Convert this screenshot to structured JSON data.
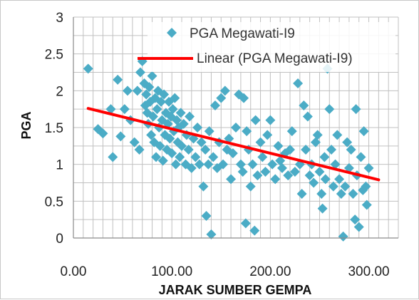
{
  "chart_data": {
    "type": "scatter",
    "title": "",
    "xlabel": "JARAK SUMBER GEMPA",
    "ylabel": "PGA",
    "xlim": [
      0,
      330
    ],
    "ylim": [
      0,
      3
    ],
    "x_ticks": [
      "0.00",
      "100.00",
      "200.00",
      "300.00"
    ],
    "x_tick_values": [
      0,
      100,
      200,
      300
    ],
    "y_ticks": [
      "0",
      "0.5",
      "1",
      "1.5",
      "2",
      "2.5",
      "3"
    ],
    "y_tick_values": [
      0,
      0.5,
      1,
      1.5,
      2,
      2.5,
      3
    ],
    "grid": true,
    "legend_position": "top-right",
    "colors": {
      "points": "#4bacc6",
      "trendline": "#ff0000",
      "grid": "#c0c0c0"
    },
    "series": [
      {
        "name": "PGA Megawati-I9",
        "kind": "scatter",
        "marker": "diamond",
        "points": [
          [
            15,
            2.3
          ],
          [
            25,
            1.48
          ],
          [
            30,
            1.42
          ],
          [
            38,
            1.75
          ],
          [
            40,
            1.1
          ],
          [
            45,
            2.15
          ],
          [
            48,
            1.38
          ],
          [
            52,
            1.75
          ],
          [
            55,
            2.0
          ],
          [
            58,
            1.6
          ],
          [
            62,
            1.3
          ],
          [
            65,
            2.0
          ],
          [
            67,
            1.2
          ],
          [
            68,
            2.25
          ],
          [
            70,
            2.4
          ],
          [
            72,
            2.1
          ],
          [
            73,
            1.8
          ],
          [
            74,
            1.95
          ],
          [
            75,
            1.7
          ],
          [
            76,
            1.55
          ],
          [
            77,
            2.05
          ],
          [
            78,
            1.85
          ],
          [
            79,
            1.4
          ],
          [
            80,
            2.2
          ],
          [
            81,
            1.65
          ],
          [
            82,
            1.3
          ],
          [
            83,
            1.9
          ],
          [
            84,
            1.1
          ],
          [
            85,
            1.75
          ],
          [
            86,
            2.0
          ],
          [
            87,
            1.5
          ],
          [
            88,
            1.25
          ],
          [
            89,
            1.85
          ],
          [
            90,
            1.6
          ],
          [
            91,
            1.05
          ],
          [
            92,
            1.95
          ],
          [
            93,
            1.4
          ],
          [
            94,
            1.7
          ],
          [
            95,
            1.2
          ],
          [
            96,
            1.55
          ],
          [
            97,
            1.85
          ],
          [
            98,
            1.35
          ],
          [
            99,
            1.65
          ],
          [
            100,
            1.15
          ],
          [
            101,
            1.75
          ],
          [
            102,
            1.45
          ],
          [
            103,
            1.9
          ],
          [
            104,
            1.0
          ],
          [
            105,
            1.6
          ],
          [
            106,
            1.3
          ],
          [
            107,
            1.5
          ],
          [
            108,
            1.1
          ],
          [
            109,
            1.7
          ],
          [
            110,
            1.25
          ],
          [
            112,
            1.55
          ],
          [
            114,
            1.0
          ],
          [
            115,
            1.4
          ],
          [
            117,
            1.2
          ],
          [
            118,
            1.65
          ],
          [
            120,
            0.95
          ],
          [
            122,
            1.35
          ],
          [
            124,
            1.1
          ],
          [
            126,
            1.5
          ],
          [
            128,
            1.0
          ],
          [
            130,
            1.3
          ],
          [
            132,
            0.7
          ],
          [
            134,
            1.2
          ],
          [
            135,
            0.3
          ],
          [
            137,
            1.0
          ],
          [
            138,
            1.45
          ],
          [
            140,
            0.05
          ],
          [
            142,
            1.1
          ],
          [
            144,
            1.8
          ],
          [
            146,
            0.95
          ],
          [
            148,
            1.3
          ],
          [
            150,
            1.9
          ],
          [
            152,
            1.0
          ],
          [
            154,
            2.0
          ],
          [
            156,
            1.2
          ],
          [
            158,
            1.35
          ],
          [
            160,
            0.8
          ],
          [
            162,
            1.15
          ],
          [
            165,
            1.5
          ],
          [
            168,
            1.95
          ],
          [
            170,
            1.0
          ],
          [
            172,
            0.9
          ],
          [
            173,
            1.9
          ],
          [
            175,
            0.2
          ],
          [
            176,
            1.45
          ],
          [
            178,
            1.2
          ],
          [
            180,
            0.7
          ],
          [
            182,
            1.0
          ],
          [
            184,
            0.1
          ],
          [
            185,
            1.6
          ],
          [
            187,
            0.85
          ],
          [
            190,
            1.3
          ],
          [
            192,
            1.1
          ],
          [
            195,
            0.9
          ],
          [
            197,
            1.4
          ],
          [
            200,
            1.6
          ],
          [
            202,
            1.0
          ],
          [
            205,
            0.8
          ],
          [
            208,
            1.25
          ],
          [
            210,
            1.05
          ],
          [
            212,
            0.95
          ],
          [
            215,
            1.15
          ],
          [
            218,
            0.85
          ],
          [
            220,
            1.2
          ],
          [
            222,
            1.45
          ],
          [
            225,
            0.9
          ],
          [
            228,
            2.1
          ],
          [
            230,
            1.0
          ],
          [
            232,
            0.6
          ],
          [
            234,
            1.8
          ],
          [
            236,
            1.2
          ],
          [
            238,
            1.65
          ],
          [
            240,
            0.85
          ],
          [
            242,
            1.0
          ],
          [
            244,
            0.75
          ],
          [
            246,
            1.3
          ],
          [
            248,
            1.4
          ],
          [
            250,
            0.9
          ],
          [
            252,
            0.6
          ],
          [
            253,
            0.4
          ],
          [
            255,
            1.1
          ],
          [
            256,
            0.8
          ],
          [
            258,
            2.3
          ],
          [
            260,
            1.75
          ],
          [
            262,
            1.2
          ],
          [
            264,
            0.7
          ],
          [
            266,
            1.0
          ],
          [
            268,
            1.4
          ],
          [
            270,
            0.8
          ],
          [
            272,
            0.6
          ],
          [
            274,
            0.02
          ],
          [
            276,
            0.7
          ],
          [
            278,
            1.3
          ],
          [
            280,
            0.95
          ],
          [
            282,
            1.2
          ],
          [
            284,
            0.6
          ],
          [
            286,
            0.25
          ],
          [
            287,
            1.75
          ],
          [
            288,
            0.85
          ],
          [
            290,
            0.15
          ],
          [
            292,
            1.1
          ],
          [
            294,
            0.65
          ],
          [
            295,
            1.45
          ],
          [
            297,
            0.7
          ],
          [
            298,
            0.45
          ],
          [
            300,
            0.95
          ]
        ]
      },
      {
        "name": "Linear (PGA Megawati-I9)",
        "kind": "trendline",
        "points": [
          [
            15,
            1.76
          ],
          [
            310,
            0.79
          ]
        ]
      }
    ]
  }
}
